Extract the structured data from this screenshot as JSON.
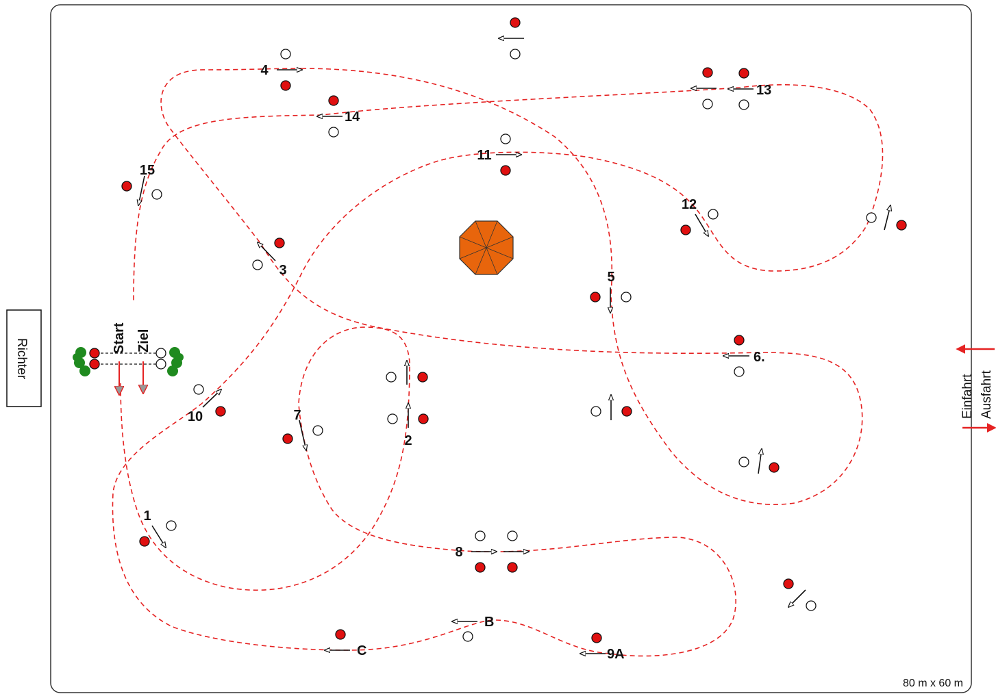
{
  "judge_label": "Richter",
  "entry_label": "Einfahrt",
  "exit_label": "Ausfahrt",
  "start_label": "Start",
  "finish_label": "Ziel",
  "dimensions_label": "80 m x 60 m",
  "obstacle_labels": {
    "o1": "1",
    "o2": "2",
    "o3": "3",
    "o4": "4",
    "o5": "5",
    "o6": "6.",
    "o7": "7",
    "o8": "8",
    "o9a": "9A",
    "o10": "10",
    "o11": "11",
    "o12": "12",
    "o13": "13",
    "o14": "14",
    "o15": "15",
    "oB": "B",
    "oC": "C"
  },
  "colors": {
    "route": "#e52222",
    "flag_red": "#e01010",
    "arrow": "#111111",
    "centerpiece": "#e8650c",
    "tree": "#1f8a1f",
    "start_arrow": "#e52222"
  },
  "icons": {
    "centerpiece": "octagon-pavilion-icon",
    "start_trees": "tree-icon",
    "flag_red": "red-flag-marker-icon",
    "flag_white": "white-flag-marker-icon"
  }
}
